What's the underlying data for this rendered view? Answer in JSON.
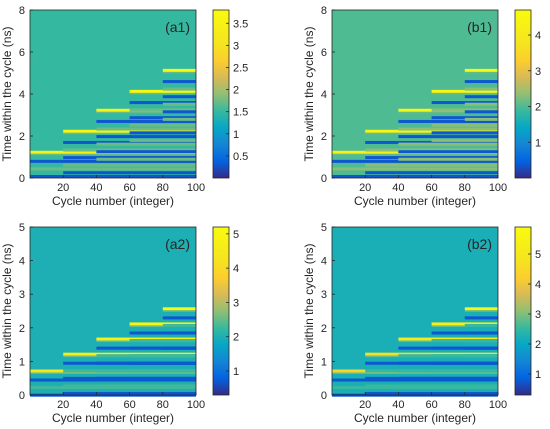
{
  "chart_data": [
    {
      "type": "heatmap",
      "panel_label": "(a1)",
      "xlabel": "Cycle number (integer)",
      "ylabel": "Time within the cycle (ns)",
      "xlim": [
        0,
        100
      ],
      "ylim": [
        0,
        8
      ],
      "xticks": [
        20,
        40,
        60,
        80,
        100
      ],
      "yticks": [
        0,
        2,
        4,
        6,
        8
      ],
      "colorbar": {
        "range": [
          0,
          3.8
        ],
        "ticks": [
          0.5,
          1,
          1.5,
          2,
          2.5,
          3,
          3.5
        ]
      },
      "background_value": 1.5,
      "description_values": {
        "cycle_groups": [
          [
            0,
            20
          ],
          [
            20,
            40
          ],
          [
            40,
            60
          ],
          [
            60,
            80
          ],
          [
            80,
            100
          ]
        ],
        "bright_line_times_ns": [
          1.2,
          2.2,
          3.2,
          4.1,
          5.1
        ],
        "bright_line_values": [
          3.5,
          3.6,
          3.6,
          3.7,
          3.8
        ],
        "dark_band_times_ns": [
          0.8,
          1.7,
          2.7,
          3.6,
          4.6
        ]
      }
    },
    {
      "type": "heatmap",
      "panel_label": "(b1)",
      "xlabel": "Cycle number (integer)",
      "ylabel": "Time within the cycle (ns)",
      "xlim": [
        0,
        100
      ],
      "ylim": [
        0,
        8
      ],
      "xticks": [
        20,
        40,
        60,
        80,
        100
      ],
      "yticks": [
        0,
        2,
        4,
        6,
        8
      ],
      "colorbar": {
        "range": [
          0,
          4.7
        ],
        "ticks": [
          1,
          2,
          3,
          4
        ]
      },
      "background_value": 2.0,
      "description_values": {
        "cycle_groups": [
          [
            0,
            20
          ],
          [
            20,
            40
          ],
          [
            40,
            60
          ],
          [
            60,
            80
          ],
          [
            80,
            100
          ]
        ],
        "bright_line_times_ns": [
          1.2,
          2.2,
          3.2,
          4.1,
          5.1
        ],
        "bright_line_values": [
          4.3,
          4.4,
          4.5,
          4.5,
          4.6
        ],
        "dark_band_times_ns": [
          0.8,
          1.7,
          2.7,
          3.6,
          4.6
        ]
      }
    },
    {
      "type": "heatmap",
      "panel_label": "(a2)",
      "xlabel": "Cycle number (integer)",
      "ylabel": "Time within the cycle (ns)",
      "xlim": [
        0,
        100
      ],
      "ylim": [
        0,
        5
      ],
      "xticks": [
        20,
        40,
        60,
        80,
        100
      ],
      "yticks": [
        0,
        1,
        2,
        3,
        4,
        5
      ],
      "colorbar": {
        "range": [
          0.3,
          5.2
        ],
        "ticks": [
          1,
          2,
          3,
          4,
          5
        ]
      },
      "background_value": 2.0,
      "description_values": {
        "cycle_groups": [
          [
            0,
            20
          ],
          [
            20,
            40
          ],
          [
            40,
            60
          ],
          [
            60,
            80
          ],
          [
            80,
            100
          ]
        ],
        "bright_line_times_ns": [
          0.7,
          1.2,
          1.65,
          2.1,
          2.55
        ],
        "bright_line_values": [
          4.3,
          4.6,
          4.8,
          5.0,
          5.1
        ],
        "dark_band_times_ns": [
          0.45,
          0.95,
          1.4,
          1.85,
          2.3
        ]
      }
    },
    {
      "type": "heatmap",
      "panel_label": "(b2)",
      "xlabel": "Cycle number (integer)",
      "ylabel": "Time within the cycle (ns)",
      "xlim": [
        0,
        100
      ],
      "ylim": [
        0,
        5
      ],
      "xticks": [
        20,
        40,
        60,
        80,
        100
      ],
      "yticks": [
        0,
        1,
        2,
        3,
        4,
        5
      ],
      "colorbar": {
        "range": [
          0.3,
          5.9
        ],
        "ticks": [
          1,
          2,
          3,
          4,
          5
        ]
      },
      "background_value": 2.2,
      "description_values": {
        "cycle_groups": [
          [
            0,
            20
          ],
          [
            20,
            40
          ],
          [
            40,
            60
          ],
          [
            60,
            80
          ],
          [
            80,
            100
          ]
        ],
        "bright_line_times_ns": [
          0.7,
          1.2,
          1.65,
          2.1,
          2.55
        ],
        "bright_line_values": [
          4.4,
          4.7,
          5.0,
          5.3,
          5.7
        ],
        "dark_band_times_ns": [
          0.45,
          0.95,
          1.4,
          1.85,
          2.3
        ]
      }
    }
  ]
}
